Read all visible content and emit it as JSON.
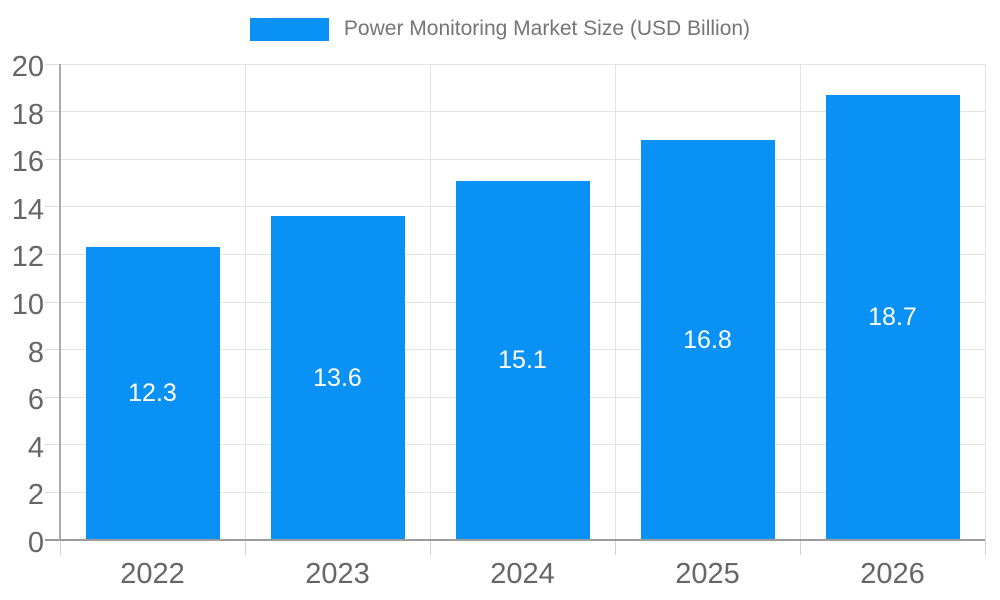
{
  "chart_data": {
    "type": "bar",
    "title": "Power Monitoring Market Size (USD Billion)",
    "series_name": "Power Monitoring Market Size (USD Billion)",
    "categories": [
      "2022",
      "2023",
      "2024",
      "2025",
      "2026"
    ],
    "values": [
      12.3,
      13.6,
      15.1,
      16.8,
      18.7
    ],
    "data_labels": [
      "12.3",
      "13.6",
      "15.1",
      "16.8",
      "18.7"
    ],
    "data_label_position": "inside-center",
    "xlabel": "",
    "ylabel": "",
    "ylim": [
      0,
      20
    ],
    "ytick_step": 2,
    "ytick_labels": [
      "0",
      "2",
      "4",
      "6",
      "8",
      "10",
      "12",
      "14",
      "16",
      "18",
      "20"
    ],
    "grid": true,
    "legend_position": "top-center",
    "colors": {
      "bar": "#0991F6",
      "data_label_text": "#ffffff",
      "axis_tick_text": "#666666",
      "legend_text": "#757575",
      "gridline": "#e3e3e3",
      "axis_line": "#9c9c9c",
      "background": "#ffffff"
    }
  }
}
